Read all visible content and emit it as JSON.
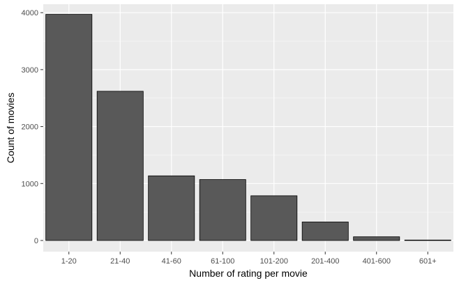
{
  "chart_data": {
    "type": "bar",
    "title": "",
    "xlabel": "Number of rating per movie",
    "ylabel": "Count of movies",
    "categories": [
      "1-20",
      "21-40",
      "41-60",
      "61-100",
      "101-200",
      "201-400",
      "401-600",
      "601+"
    ],
    "values": [
      3970,
      2620,
      1135,
      1070,
      785,
      325,
      65,
      8
    ],
    "ylim": [
      0,
      4100
    ],
    "yticks": [
      0,
      1000,
      2000,
      3000,
      4000
    ],
    "grid": true,
    "legend": "none",
    "colors": {
      "panel": "#ebebeb",
      "grid_major": "#ffffff",
      "bar_fill": "#595959",
      "bar_stroke": "#000000"
    }
  }
}
